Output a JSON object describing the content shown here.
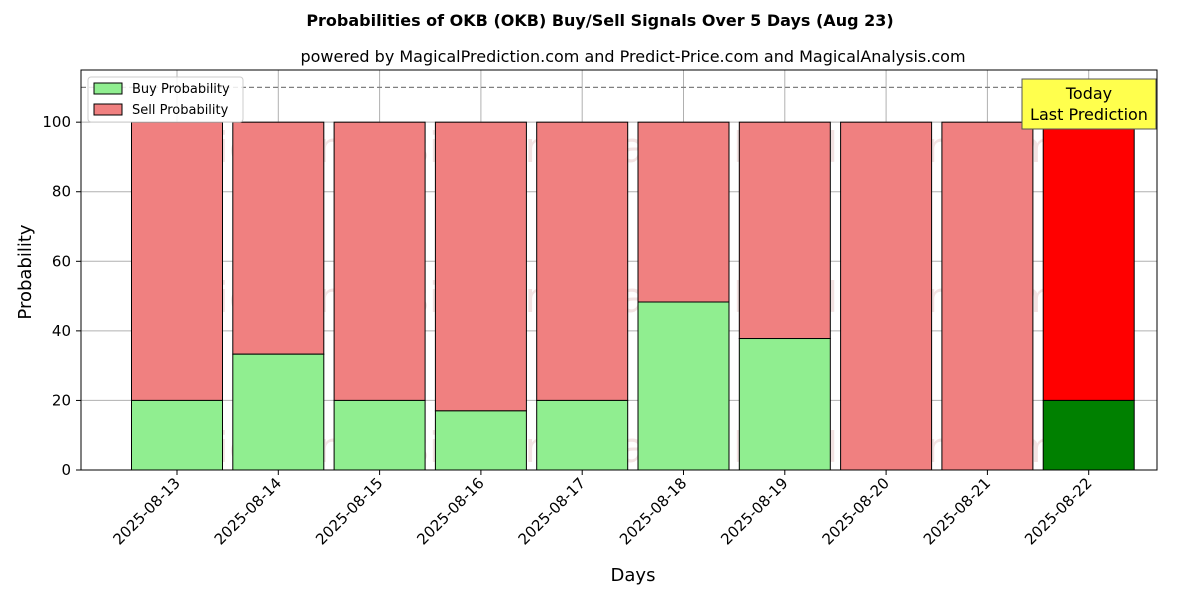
{
  "chart_data": {
    "type": "bar",
    "stacked": true,
    "title": "Probabilities of OKB (OKB) Buy/Sell Signals Over 5 Days (Aug 23)",
    "subtitle": "powered by MagicalPrediction.com and Predict-Price.com and MagicalAnalysis.com",
    "xlabel": "Days",
    "ylabel": "Probability",
    "ylim": [
      0,
      115
    ],
    "yticks": [
      0,
      20,
      40,
      60,
      80,
      100
    ],
    "grid": true,
    "legend_position": "top-left",
    "reference_line": 110,
    "categories": [
      "2025-08-13",
      "2025-08-14",
      "2025-08-15",
      "2025-08-16",
      "2025-08-17",
      "2025-08-18",
      "2025-08-19",
      "2025-08-20",
      "2025-08-21",
      "2025-08-22"
    ],
    "series": [
      {
        "name": "Buy Probability",
        "values": [
          20,
          33.3,
          20,
          17,
          20,
          48.3,
          37.8,
          0,
          0,
          20
        ]
      },
      {
        "name": "Sell Probability",
        "values": [
          80,
          66.7,
          80,
          83,
          80,
          51.7,
          62.2,
          100,
          100,
          80
        ]
      }
    ],
    "highlight_index": 9,
    "annotation": {
      "line1": "Today",
      "line2": "Last Prediction"
    },
    "watermarks": [
      "MagicalAnalysis.com",
      "MagicalPrediction.com"
    ]
  },
  "colors": {
    "buy": "#90ee90",
    "sell": "#f08080",
    "buy_highlight": "#008000",
    "sell_highlight": "#ff0000",
    "annotation_bg": "#ffff4d",
    "grid": "#b0b0b0"
  }
}
